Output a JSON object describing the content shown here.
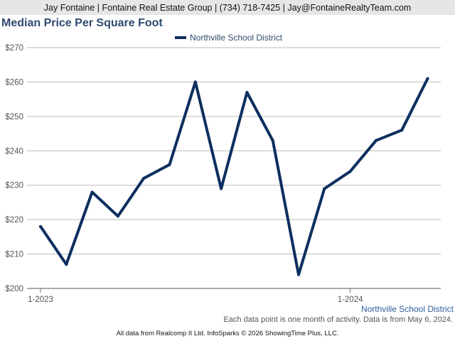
{
  "header": {
    "contact": "Jay Fontaine | Fontaine Real Estate Group | (734) 718-7425 | Jay@FontaineRealtyTeam.com"
  },
  "footer": {
    "region": "Northville School District",
    "note": "Each data point is one month of activity. Data is from May 6, 2024.",
    "credit": "All data from Realcomp II Ltd. InfoSparks © 2026 ShowingTime Plus, LLC."
  },
  "colors": {
    "series": "#0d2f5f",
    "title": "#2f4a70",
    "grid": "#bbbbbb"
  },
  "chart_data": {
    "type": "line",
    "title": "Median Price Per Square Foot",
    "x": [
      "2023-01",
      "2023-02",
      "2023-03",
      "2023-04",
      "2023-05",
      "2023-06",
      "2023-07",
      "2023-08",
      "2023-09",
      "2023-10",
      "2023-11",
      "2023-12",
      "2024-01",
      "2024-02",
      "2024-03",
      "2024-04"
    ],
    "x_tick_labels": [
      {
        "label": "1-2023",
        "index": 0
      },
      {
        "label": "1-2024",
        "index": 12
      }
    ],
    "series": [
      {
        "name": "Northville School District",
        "values": [
          218,
          207,
          228,
          221,
          232,
          236,
          260,
          229,
          257,
          243,
          204,
          229,
          234,
          243,
          246,
          261
        ]
      }
    ],
    "ylim": [
      200,
      270
    ],
    "yticks": [
      200,
      210,
      220,
      230,
      240,
      250,
      260,
      270
    ],
    "ytick_labels": [
      "$200",
      "$210",
      "$220",
      "$230",
      "$240",
      "$250",
      "$260",
      "$270"
    ],
    "grid": true,
    "legend": "top-center"
  }
}
